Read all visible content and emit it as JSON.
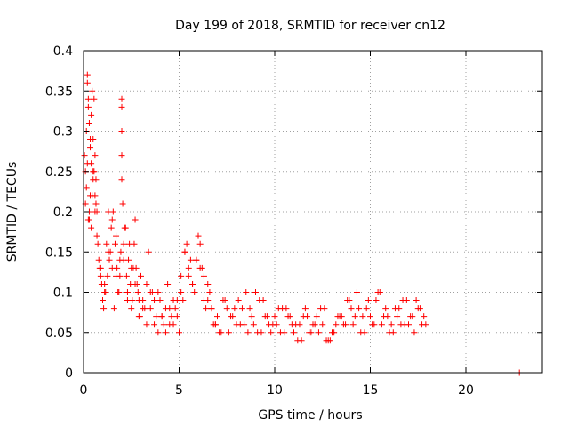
{
  "chart_data": {
    "type": "scatter",
    "title": "Day 199 of 2018, SRMTID for receiver cn12",
    "xlabel": "GPS time / hours",
    "ylabel": "SRMTID / TECUs",
    "xlim": [
      0,
      24
    ],
    "ylim": [
      0,
      0.4
    ],
    "xticks": [
      0,
      5,
      10,
      15,
      20
    ],
    "yticks": [
      0,
      0.05,
      0.1,
      0.15,
      0.2,
      0.25,
      0.3,
      0.35,
      0.4
    ],
    "xtick_labels": [
      "0",
      "5",
      "10",
      "15",
      "20"
    ],
    "ytick_labels": [
      "0",
      "0.05",
      "0.1",
      "0.15",
      "0.2",
      "0.25",
      "0.3",
      "0.35",
      "0.4"
    ],
    "grid": true,
    "marker": "+",
    "color": "#ff0000",
    "series": [
      {
        "name": "SRMTID",
        "x": [
          0.05,
          0.1,
          0.15,
          0.2,
          0.25,
          0.3,
          0.35,
          0.4,
          0.45,
          0.5,
          0.55,
          0.6,
          0.65,
          0.7,
          0.8,
          0.9,
          1.0,
          1.1,
          1.2,
          1.3,
          1.4,
          1.5,
          1.6,
          1.7,
          1.8,
          1.9,
          2.0,
          2.1,
          2.2,
          2.3,
          2.4,
          2.5,
          2.6,
          2.7,
          2.8,
          2.9,
          3.0,
          3.2,
          3.4,
          3.6,
          3.8,
          4.0,
          4.2,
          4.4,
          4.6,
          4.8,
          5.0,
          5.2,
          5.4,
          5.6,
          5.8,
          6.0,
          6.2,
          6.4,
          6.6,
          6.8,
          7.0,
          7.3,
          7.6,
          7.9,
          8.2,
          8.5,
          8.8,
          9.1,
          9.4,
          9.7,
          10.0,
          10.3,
          10.6,
          10.9,
          11.2,
          11.5,
          11.8,
          12.1,
          12.4,
          12.7,
          13.0,
          13.3,
          13.6,
          13.9,
          14.2,
          14.5,
          14.8,
          15.1,
          15.4,
          15.7,
          16.0,
          16.3,
          16.6,
          16.9,
          17.2,
          17.5,
          17.8,
          0.1,
          0.2,
          0.3,
          0.4,
          0.5,
          0.6,
          0.7,
          0.9,
          1.1,
          1.3,
          1.5,
          1.7,
          1.9,
          2.1,
          2.3,
          2.5,
          2.7,
          2.9,
          3.1,
          3.3,
          3.5,
          3.7,
          3.9,
          4.1,
          4.3,
          4.5,
          4.7,
          4.9,
          5.1,
          5.3,
          5.5,
          5.7,
          5.9,
          6.1,
          6.3,
          6.5,
          6.7,
          6.9,
          7.2,
          7.5,
          7.8,
          8.1,
          8.4,
          8.7,
          9.0,
          9.3,
          9.6,
          9.9,
          10.2,
          10.5,
          10.8,
          11.1,
          11.4,
          11.7,
          12.0,
          12.3,
          12.6,
          12.9,
          13.2,
          13.5,
          13.8,
          14.1,
          14.4,
          14.7,
          15.0,
          15.3,
          15.6,
          15.9,
          16.2,
          16.5,
          16.8,
          17.1,
          17.4,
          17.7,
          0.15,
          0.25,
          0.35,
          0.45,
          0.55,
          0.65,
          0.75,
          0.85,
          0.95,
          1.05,
          1.15,
          1.25,
          1.35,
          1.45,
          1.55,
          1.65,
          1.75,
          1.85,
          1.95,
          2.05,
          2.15,
          2.25,
          2.35,
          2.45,
          2.55,
          2.65,
          2.75,
          2.85,
          2.95,
          3.1,
          3.3,
          3.5,
          3.7,
          3.9,
          4.1,
          4.3,
          4.5,
          4.7,
          4.9,
          5.1,
          5.3,
          5.5,
          5.7,
          5.9,
          6.1,
          6.3,
          6.5,
          6.7,
          6.9,
          7.1,
          7.4,
          7.7,
          8.0,
          8.3,
          8.6,
          8.9,
          9.2,
          9.5,
          9.8,
          10.1,
          10.4,
          10.7,
          11.0,
          11.3,
          11.6,
          11.9,
          12.2,
          12.5,
          12.8,
          13.1,
          13.4,
          13.7,
          14.0,
          14.3,
          14.6,
          14.9,
          15.2,
          15.5,
          15.8,
          16.1,
          16.4,
          16.7,
          17.0,
          17.3,
          17.6,
          17.9,
          2.0,
          2.0,
          2.0,
          2.0,
          2.0,
          0.2,
          0.25,
          0.3,
          0.35,
          0.4,
          0.5,
          0.6,
          22.8
        ],
        "y": [
          0.27,
          0.25,
          0.3,
          0.37,
          0.33,
          0.2,
          0.22,
          0.18,
          0.35,
          0.29,
          0.34,
          0.27,
          0.24,
          0.2,
          0.14,
          0.12,
          0.09,
          0.11,
          0.16,
          0.2,
          0.15,
          0.13,
          0.08,
          0.17,
          0.1,
          0.12,
          0.3,
          0.14,
          0.18,
          0.1,
          0.16,
          0.08,
          0.13,
          0.19,
          0.11,
          0.09,
          0.12,
          0.08,
          0.15,
          0.1,
          0.07,
          0.09,
          0.06,
          0.11,
          0.07,
          0.08,
          0.05,
          0.09,
          0.16,
          0.14,
          0.1,
          0.17,
          0.13,
          0.08,
          0.1,
          0.06,
          0.07,
          0.09,
          0.05,
          0.08,
          0.06,
          0.1,
          0.07,
          0.05,
          0.09,
          0.06,
          0.07,
          0.05,
          0.08,
          0.06,
          0.04,
          0.07,
          0.05,
          0.06,
          0.08,
          0.04,
          0.05,
          0.07,
          0.06,
          0.09,
          0.07,
          0.05,
          0.08,
          0.06,
          0.1,
          0.07,
          0.05,
          0.08,
          0.06,
          0.09,
          0.07,
          0.08,
          0.07,
          0.21,
          0.26,
          0.19,
          0.32,
          0.24,
          0.2,
          0.17,
          0.13,
          0.1,
          0.15,
          0.19,
          0.12,
          0.14,
          0.16,
          0.09,
          0.13,
          0.11,
          0.07,
          0.08,
          0.06,
          0.1,
          0.09,
          0.05,
          0.07,
          0.08,
          0.06,
          0.09,
          0.07,
          0.12,
          0.15,
          0.13,
          0.11,
          0.14,
          0.16,
          0.12,
          0.09,
          0.08,
          0.06,
          0.05,
          0.08,
          0.07,
          0.09,
          0.06,
          0.08,
          0.1,
          0.05,
          0.07,
          0.06,
          0.08,
          0.05,
          0.07,
          0.06,
          0.04,
          0.07,
          0.06,
          0.05,
          0.08,
          0.04,
          0.06,
          0.07,
          0.09,
          0.06,
          0.08,
          0.05,
          0.07,
          0.09,
          0.06,
          0.07,
          0.05,
          0.08,
          0.06,
          0.07,
          0.09,
          0.06,
          0.23,
          0.19,
          0.29,
          0.22,
          0.25,
          0.21,
          0.16,
          0.13,
          0.11,
          0.08,
          0.1,
          0.12,
          0.14,
          0.18,
          0.2,
          0.16,
          0.13,
          0.1,
          0.15,
          0.21,
          0.18,
          0.12,
          0.14,
          0.11,
          0.09,
          0.16,
          0.13,
          0.1,
          0.07,
          0.09,
          0.11,
          0.08,
          0.06,
          0.1,
          0.07,
          0.05,
          0.08,
          0.06,
          0.09,
          0.1,
          0.15,
          0.12,
          0.11,
          0.14,
          0.13,
          0.09,
          0.11,
          0.08,
          0.06,
          0.05,
          0.09,
          0.07,
          0.06,
          0.08,
          0.05,
          0.06,
          0.09,
          0.07,
          0.05,
          0.06,
          0.08,
          0.07,
          0.05,
          0.06,
          0.08,
          0.05,
          0.07,
          0.06,
          0.04,
          0.05,
          0.07,
          0.06,
          0.08,
          0.1,
          0.07,
          0.09,
          0.06,
          0.1,
          0.08,
          0.06,
          0.07,
          0.09,
          0.06,
          0.05,
          0.08,
          0.06,
          0.24,
          0.27,
          0.34,
          0.3,
          0.33,
          0.36,
          0.34,
          0.31,
          0.28,
          0.26,
          0.25,
          0.22,
          0.0
        ]
      }
    ]
  }
}
